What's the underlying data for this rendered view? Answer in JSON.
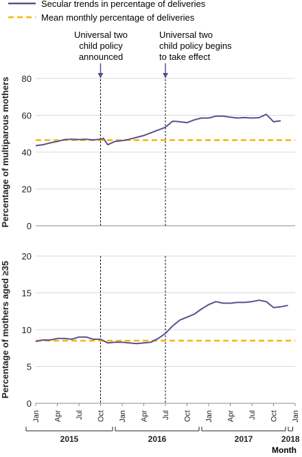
{
  "legend": {
    "secular_label": "Secular trends in percentage of deliveries",
    "mean_label": "Mean monthly percentage of deliveries",
    "secular_color": "#5b4e8e",
    "mean_color": "#f2b705"
  },
  "annotations": {
    "announce": [
      "Universal two",
      "child policy",
      "announced"
    ],
    "effect": [
      "Universal two",
      "child policy begins",
      "to take effect"
    ],
    "announce_x_month": 9,
    "effect_x_month": 18
  },
  "x_axis": {
    "month_ticks": [
      "Jan",
      "Apr",
      "Jul",
      "Oct",
      "Jan",
      "Apr",
      "Jul",
      "Oct",
      "Jan",
      "Apr",
      "Jul",
      "Oct",
      "Jan"
    ],
    "years": [
      "2015",
      "2016",
      "2017",
      "2018"
    ],
    "xlabel": "Month"
  },
  "chart_data": [
    {
      "type": "line",
      "ylabel": "Percentage of multiparous mothers",
      "ylim": [
        0,
        80
      ],
      "yticks": [
        0,
        20,
        40,
        60,
        80
      ],
      "grid": true,
      "x_month_index": [
        0,
        1,
        2,
        3,
        4,
        5,
        6,
        7,
        8,
        9,
        9.4,
        10,
        11,
        12,
        13,
        14,
        15,
        16,
        17,
        18,
        19,
        20,
        21,
        22,
        23,
        24,
        25,
        26,
        27,
        28,
        29,
        30,
        31,
        32,
        33,
        34,
        35,
        36
      ],
      "series": [
        {
          "name": "Secular trends in percentage of deliveries",
          "values": [
            43.5,
            44,
            45,
            45.8,
            46.8,
            47,
            46.8,
            47,
            46.6,
            47,
            47.5,
            44,
            45.8,
            46.2,
            47,
            48,
            49,
            50.5,
            52,
            53.5,
            56.8,
            56.5,
            56,
            57.5,
            58.5,
            58.5,
            59.5,
            59.5,
            59,
            58.5,
            58.8,
            58.5,
            58.7,
            60.5,
            56.5,
            57,
            null,
            null
          ]
        },
        {
          "name": "Mean monthly percentage of deliveries",
          "mean": 46.5
        }
      ]
    },
    {
      "type": "line",
      "ylabel": "Percentage of mothers aged ≥35",
      "ylim": [
        0,
        20
      ],
      "yticks": [
        0,
        5,
        10,
        15,
        20
      ],
      "grid": true,
      "x_month_index": [
        0,
        1,
        2,
        3,
        4,
        5,
        6,
        7,
        8,
        9,
        10,
        11,
        12,
        13,
        14,
        15,
        16,
        17,
        18,
        19,
        20,
        21,
        22,
        23,
        24,
        25,
        26,
        27,
        28,
        29,
        30,
        31,
        32,
        33,
        34,
        35
      ],
      "series": [
        {
          "name": "Secular trends in percentage of deliveries",
          "values": [
            8.4,
            8.6,
            8.6,
            8.8,
            8.8,
            8.7,
            9,
            9,
            8.7,
            8.7,
            8.2,
            8.3,
            8.3,
            8.2,
            8.1,
            8.2,
            8.3,
            8.8,
            9.5,
            10.5,
            11.3,
            11.7,
            12.1,
            12.8,
            13.4,
            13.8,
            13.6,
            13.6,
            13.7,
            13.7,
            13.8,
            14,
            13.8,
            13,
            13.1,
            13.3
          ]
        },
        {
          "name": "Mean monthly percentage of deliveries",
          "mean": 8.5
        }
      ]
    }
  ]
}
